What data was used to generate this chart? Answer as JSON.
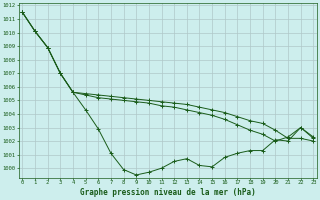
{
  "title": "Graphe pression niveau de la mer (hPa)",
  "bg_color": "#cdeeed",
  "grid_color": "#b0c8c8",
  "line_color": "#1a5c1a",
  "x_labels": [
    "0",
    "1",
    "2",
    "3",
    "4",
    "5",
    "6",
    "7",
    "8",
    "9",
    "10",
    "11",
    "12",
    "13",
    "14",
    "15",
    "16",
    "17",
    "18",
    "19",
    "20",
    "21",
    "22",
    "23"
  ],
  "ylim": [
    999.3,
    1012.2
  ],
  "yticks": [
    1000,
    1001,
    1002,
    1003,
    1004,
    1005,
    1006,
    1007,
    1008,
    1009,
    1010,
    1011,
    1012
  ],
  "series": [
    [
      1011.5,
      1010.1,
      1008.9,
      1007.0,
      1005.6,
      1004.3,
      1002.9,
      1001.1,
      999.9,
      999.5,
      999.7,
      1000.0,
      1000.5,
      1000.7,
      1000.2,
      1000.1,
      1000.8,
      1001.1,
      1001.3,
      1001.3,
      1002.1,
      1002.0,
      1003.0,
      1002.2
    ],
    [
      1011.5,
      1010.1,
      1008.9,
      1007.0,
      1005.6,
      1005.4,
      1005.2,
      1005.1,
      1005.0,
      1004.9,
      1004.8,
      1004.6,
      1004.5,
      1004.3,
      1004.1,
      1003.9,
      1003.6,
      1003.2,
      1002.8,
      1002.5,
      1002.0,
      1002.3,
      1003.0,
      1002.3
    ],
    [
      1011.5,
      1010.1,
      1008.9,
      1007.0,
      1005.6,
      1005.5,
      1005.4,
      1005.3,
      1005.2,
      1005.1,
      1005.0,
      1004.9,
      1004.8,
      1004.7,
      1004.5,
      1004.3,
      1004.1,
      1003.8,
      1003.5,
      1003.3,
      1002.8,
      1002.2,
      1002.2,
      1002.0
    ]
  ]
}
